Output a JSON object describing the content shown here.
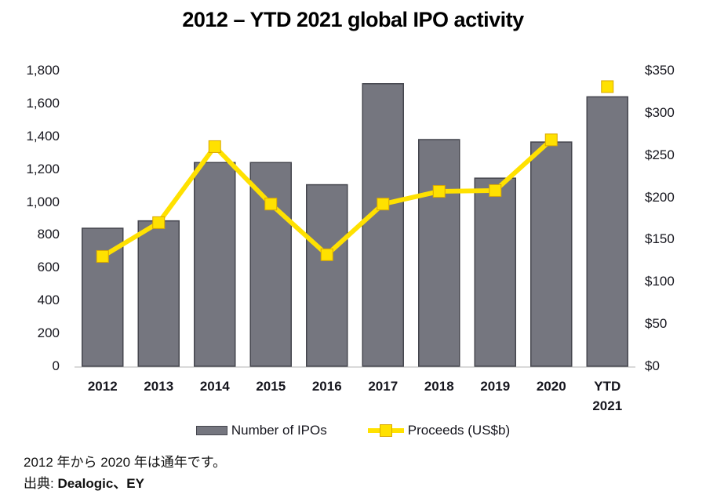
{
  "chart_data": {
    "type": "bar",
    "subtype": "bar-line-combo",
    "title": "2012 – YTD 2021 global IPO activity",
    "categories": [
      "2012",
      "2013",
      "2014",
      "2015",
      "2016",
      "2017",
      "2018",
      "2019",
      "2020",
      "YTD\n2021"
    ],
    "series": [
      {
        "name": "Number of IPOs",
        "type": "bar",
        "axis": "left",
        "values": [
          840,
          885,
          1240,
          1240,
          1105,
          1720,
          1380,
          1145,
          1365,
          1640
        ]
      },
      {
        "name": "Proceeds (US$b)",
        "type": "line",
        "axis": "right",
        "values": [
          130,
          170,
          260,
          192,
          132,
          192,
          207,
          208,
          268,
          331
        ],
        "last_point_connected": false
      }
    ],
    "left_axis": {
      "min": 0,
      "max": 1800,
      "step": 200,
      "ticks": [
        "0",
        "200",
        "400",
        "600",
        "800",
        "1,000",
        "1,200",
        "1,400",
        "1,600",
        "1,800"
      ]
    },
    "right_axis": {
      "min": 0,
      "max": 350,
      "step": 50,
      "ticks": [
        "$0",
        "$50",
        "$100",
        "$150",
        "$200",
        "$250",
        "$300",
        "$350"
      ]
    },
    "grid": false,
    "legend_position": "bottom",
    "colors": {
      "bar_fill": "#75767F",
      "bar_border": "#45464E",
      "line": "#FFE100",
      "marker_fill": "#FFE100",
      "marker_border": "#D9A800",
      "baseline": "#D9D9D9",
      "text": "#16161E"
    }
  },
  "footer": {
    "note": "2012 年から 2020 年は通年です。",
    "source_prefix": "出典: ",
    "source_bold": "Dealogic、EY"
  }
}
